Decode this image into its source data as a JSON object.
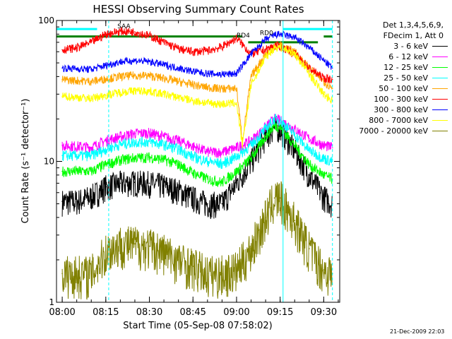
{
  "chart_data": {
    "type": "line",
    "title": "HESSI Observing Summary Count Rates",
    "xlabel": "Start Time (05-Sep-08 07:58:02)",
    "ylabel": "Count Rate (s⁻¹ detector⁻¹)",
    "x_tick_labels": [
      "08:00",
      "08:15",
      "08:30",
      "08:45",
      "09:00",
      "09:15",
      "09:30"
    ],
    "x_range": [
      "07:58:02",
      "09:35:30"
    ],
    "y_scale": "log",
    "y_range": [
      1,
      100
    ],
    "y_tick_labels": [
      "1",
      "10",
      "100"
    ],
    "legend_header": [
      "Det 1,3,4,5,6,9,",
      "FDecim 1, Att 0"
    ],
    "annotations": [
      "SAA",
      "RD4",
      "RD0"
    ],
    "vertical_markers": [
      "08:16",
      "09:16",
      "09:33"
    ],
    "series": [
      {
        "name": "3 - 6 keV",
        "color": "#000000",
        "x": [
          "08:00",
          "08:05",
          "08:10",
          "08:15",
          "08:20",
          "08:25",
          "08:30",
          "08:35",
          "08:40",
          "08:45",
          "08:50",
          "08:55",
          "09:00",
          "09:05",
          "09:10",
          "09:13",
          "09:15",
          "09:20",
          "09:25",
          "09:30",
          "09:33"
        ],
        "y": [
          5.2,
          5.2,
          5.6,
          6.6,
          7.0,
          7.1,
          7.0,
          6.7,
          6.2,
          5.5,
          5.0,
          5.0,
          7.0,
          10.0,
          15.0,
          17.5,
          17.0,
          12.0,
          8.0,
          5.6,
          5.0
        ]
      },
      {
        "name": "6 - 12 keV",
        "color": "#ff00ff",
        "x": [
          "08:00",
          "08:10",
          "08:15",
          "08:20",
          "08:25",
          "08:30",
          "08:35",
          "08:40",
          "08:45",
          "08:50",
          "08:55",
          "09:00",
          "09:05",
          "09:10",
          "09:13",
          "09:15",
          "09:20",
          "09:25",
          "09:30",
          "09:33"
        ],
        "y": [
          13.0,
          12.6,
          14.0,
          15.0,
          15.8,
          15.9,
          15.0,
          14.0,
          12.8,
          11.7,
          11.6,
          12.5,
          14.0,
          17.5,
          20.0,
          19.5,
          17.0,
          14.5,
          13.0,
          12.5
        ]
      },
      {
        "name": "12 - 25 keV",
        "color": "#00ff00",
        "x": [
          "08:00",
          "08:10",
          "08:15",
          "08:20",
          "08:25",
          "08:30",
          "08:35",
          "08:40",
          "08:45",
          "08:50",
          "08:55",
          "09:00",
          "09:05",
          "09:10",
          "09:13",
          "09:15",
          "09:20",
          "09:25",
          "09:30",
          "09:33"
        ],
        "y": [
          8.5,
          8.5,
          9.5,
          10.2,
          10.6,
          10.7,
          10.3,
          9.5,
          8.3,
          7.5,
          7.1,
          8.5,
          10.5,
          15.0,
          18.0,
          17.5,
          13.0,
          9.5,
          8.0,
          7.5
        ]
      },
      {
        "name": "25 - 50 keV",
        "color": "#00ffff",
        "x": [
          "08:00",
          "08:10",
          "08:15",
          "08:20",
          "08:25",
          "08:30",
          "08:35",
          "08:40",
          "08:45",
          "08:50",
          "08:55",
          "09:00",
          "09:05",
          "09:10",
          "09:13",
          "09:15",
          "09:20",
          "09:25",
          "09:30",
          "09:33"
        ],
        "y": [
          11.0,
          11.0,
          12.2,
          13.2,
          13.7,
          13.8,
          13.1,
          12.2,
          10.8,
          10.0,
          9.6,
          10.8,
          13.0,
          17.0,
          20.0,
          19.5,
          15.5,
          12.0,
          10.5,
          10.0
        ]
      },
      {
        "name": "50 - 100 keV",
        "color": "#ffa500",
        "x": [
          "08:00",
          "08:10",
          "08:15",
          "08:20",
          "08:25",
          "08:30",
          "08:35",
          "08:40",
          "08:45",
          "08:50",
          "08:55",
          "09:00",
          "09:02",
          "09:05",
          "09:10",
          "09:13",
          "09:15",
          "09:20",
          "09:25",
          "09:30",
          "09:33"
        ],
        "y": [
          38.0,
          37.0,
          38.5,
          40.0,
          40.8,
          40.5,
          39.0,
          36.8,
          35.0,
          33.5,
          32.8,
          33.0,
          14.0,
          40.0,
          58.0,
          66.0,
          67.0,
          60.0,
          46.0,
          37.0,
          33.0
        ]
      },
      {
        "name": "100 - 300 keV",
        "color": "#ff0000",
        "x": [
          "08:00",
          "08:05",
          "08:10",
          "08:15",
          "08:20",
          "08:25",
          "08:30",
          "08:35",
          "08:40",
          "08:45",
          "08:50",
          "08:55",
          "09:00",
          "09:05",
          "09:10",
          "09:13",
          "09:15",
          "09:20",
          "09:25",
          "09:30",
          "09:33"
        ],
        "y": [
          62.0,
          64.0,
          70.0,
          80.0,
          84.0,
          83.0,
          78.0,
          70.0,
          63.0,
          60.0,
          61.0,
          65.0,
          75.0,
          58.0,
          62.0,
          66.0,
          66.0,
          58.0,
          46.0,
          39.0,
          38.0
        ]
      },
      {
        "name": "300 - 800 keV",
        "color": "#0000ff",
        "x": [
          "08:00",
          "08:10",
          "08:15",
          "08:20",
          "08:25",
          "08:30",
          "08:35",
          "08:40",
          "08:45",
          "08:50",
          "08:55",
          "09:00",
          "09:05",
          "09:10",
          "09:13",
          "09:15",
          "09:20",
          "09:25",
          "09:30",
          "09:33"
        ],
        "y": [
          46.0,
          45.0,
          48.0,
          51.0,
          52.0,
          51.0,
          48.5,
          46.0,
          43.5,
          42.0,
          41.5,
          42.0,
          58.0,
          73.0,
          79.0,
          80.0,
          76.0,
          64.0,
          52.0,
          46.0
        ]
      },
      {
        "name": "800 - 7000 keV",
        "color": "#ffff00",
        "x": [
          "08:00",
          "08:10",
          "08:15",
          "08:20",
          "08:25",
          "08:30",
          "08:35",
          "08:40",
          "08:45",
          "08:50",
          "08:55",
          "09:00",
          "09:02",
          "09:05",
          "09:10",
          "09:13",
          "09:15",
          "09:20",
          "09:25",
          "09:30",
          "09:33"
        ],
        "y": [
          29.0,
          28.0,
          29.5,
          31.0,
          31.8,
          31.5,
          30.0,
          28.5,
          27.0,
          26.0,
          25.5,
          26.0,
          13.0,
          35.0,
          55.0,
          64.0,
          65.0,
          58.0,
          42.0,
          30.0,
          27.0
        ]
      },
      {
        "name": "7000 - 20000 keV",
        "color": "#808000",
        "x": [
          "08:00",
          "08:10",
          "08:15",
          "08:20",
          "08:25",
          "08:30",
          "08:35",
          "08:40",
          "08:45",
          "08:50",
          "08:55",
          "09:00",
          "09:05",
          "09:10",
          "09:13",
          "09:15",
          "09:20",
          "09:25",
          "09:30",
          "09:33"
        ],
        "y": [
          1.6,
          1.6,
          2.3,
          2.6,
          2.6,
          2.5,
          2.3,
          2.0,
          1.8,
          1.6,
          1.6,
          1.7,
          2.4,
          4.0,
          5.5,
          5.5,
          3.8,
          2.4,
          1.7,
          1.6
        ]
      }
    ],
    "bars": [
      {
        "start": "07:58:02",
        "end": "09:02",
        "level": 77,
        "color": "#008000"
      },
      {
        "start": "09:04",
        "end": "09:28",
        "level": 70,
        "color": "#008000"
      },
      {
        "start": "09:30",
        "end": "09:33",
        "level": 77,
        "color": "#008000"
      },
      {
        "start": "07:58:02",
        "end": "08:12",
        "level": 87,
        "color": "#00ffff"
      },
      {
        "start": "09:16",
        "end": "09:33",
        "level": 87,
        "color": "#00ffff"
      }
    ],
    "grid": false,
    "legend_position": "right"
  },
  "footer": {
    "timestamp": "21-Dec-2009 22:03"
  }
}
